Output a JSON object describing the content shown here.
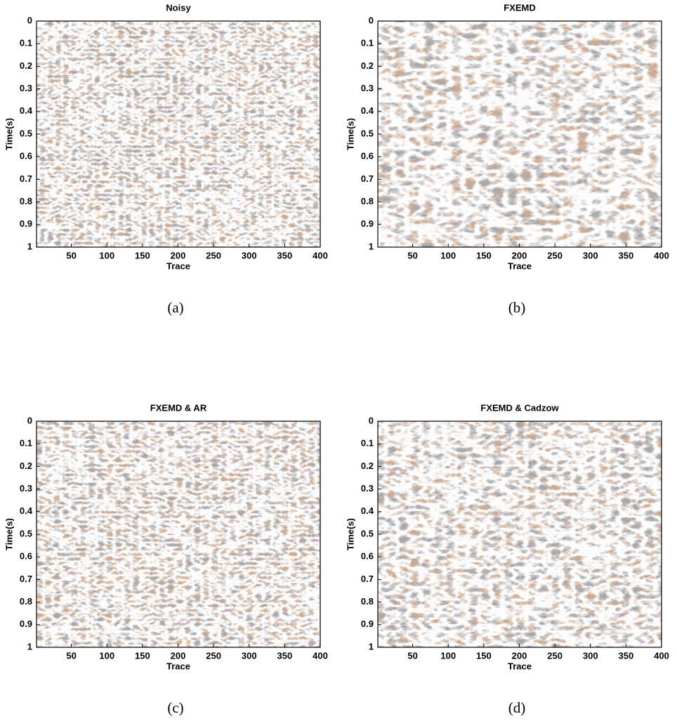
{
  "chart_data": [
    {
      "type": "seismic",
      "title": "Noisy",
      "xlabel": "Trace",
      "ylabel": "Time(s)",
      "caption": "(a)",
      "xlim": [
        1,
        400
      ],
      "xticks": [
        50,
        100,
        150,
        200,
        250,
        300,
        350,
        400
      ],
      "ylim": [
        1,
        0
      ],
      "yticks": [
        0,
        0.1,
        0.2,
        0.3,
        0.4,
        0.5,
        0.6,
        0.7,
        0.8,
        0.9,
        1
      ]
    },
    {
      "type": "seismic",
      "title": "FXEMD",
      "xlabel": "Trace",
      "ylabel": "Time(s)",
      "caption": "(b)",
      "xlim": [
        1,
        400
      ],
      "xticks": [
        50,
        100,
        150,
        200,
        250,
        300,
        350,
        400
      ],
      "ylim": [
        1,
        0
      ],
      "yticks": [
        0,
        0.1,
        0.2,
        0.3,
        0.4,
        0.5,
        0.6,
        0.7,
        0.8,
        0.9,
        1
      ]
    },
    {
      "type": "seismic",
      "title": "FXEMD & AR",
      "xlabel": "Trace",
      "ylabel": "Time(s)",
      "caption": "(c)",
      "xlim": [
        1,
        400
      ],
      "xticks": [
        50,
        100,
        150,
        200,
        250,
        300,
        350,
        400
      ],
      "ylim": [
        1,
        0
      ],
      "yticks": [
        0,
        0.1,
        0.2,
        0.3,
        0.4,
        0.5,
        0.6,
        0.7,
        0.8,
        0.9,
        1
      ]
    },
    {
      "type": "seismic",
      "title": "FXEMD & Cadzow",
      "xlabel": "Trace",
      "ylabel": "Time(s)",
      "caption": "(d)",
      "xlim": [
        1,
        400
      ],
      "xticks": [
        50,
        100,
        150,
        200,
        250,
        300,
        350,
        400
      ],
      "ylim": [
        1,
        0
      ],
      "yticks": [
        0,
        0.1,
        0.2,
        0.3,
        0.4,
        0.5,
        0.6,
        0.7,
        0.8,
        0.9,
        1
      ]
    }
  ]
}
